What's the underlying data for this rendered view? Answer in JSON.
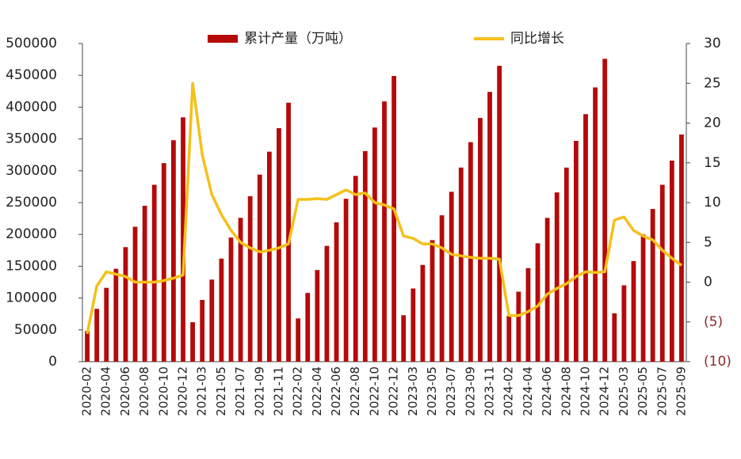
{
  "chart_data": {
    "type": "bar_line",
    "categories": [
      "2020-02",
      null,
      "2020-04",
      null,
      "2020-06",
      null,
      "2020-08",
      null,
      "2020-10",
      null,
      "2020-12",
      null,
      "2021-03",
      null,
      "2021-05",
      null,
      "2021-07",
      null,
      "2021-09",
      null,
      "2021-11",
      null,
      "2022-02",
      null,
      "2022-04",
      null,
      "2022-06",
      null,
      "2022-08",
      null,
      "2022-10",
      null,
      "2022-12",
      null,
      "2023-03",
      null,
      "2023-05",
      null,
      "2023-07",
      null,
      "2023-09",
      null,
      "2023-11",
      null,
      "2024-02",
      null,
      "2024-04",
      null,
      "2024-06",
      null,
      "2024-08",
      null,
      "2024-10",
      null,
      "2024-12",
      null,
      "2025-03",
      null,
      "2025-05",
      null,
      "2025-07",
      null,
      "2025-09"
    ],
    "series": [
      {
        "name": "累计产量（万吨）",
        "type": "bar",
        "color": "#b50a0a",
        "values": [
          48000,
          83000,
          116000,
          146000,
          180000,
          212000,
          245000,
          278000,
          312000,
          348000,
          384000,
          62000,
          97000,
          129000,
          162000,
          195000,
          226000,
          260000,
          294000,
          330000,
          367000,
          407000,
          68000,
          108000,
          144000,
          182000,
          219000,
          256000,
          292000,
          331000,
          368000,
          409000,
          449000,
          73000,
          115000,
          152000,
          191000,
          230000,
          267000,
          305000,
          345000,
          383000,
          424000,
          465000,
          72000,
          110000,
          147000,
          186000,
          226000,
          266000,
          305000,
          347000,
          389000,
          431000,
          476000,
          76000,
          120000,
          158000,
          200000,
          240000,
          278000,
          316000,
          357000
        ]
      },
      {
        "name": "同比增长",
        "type": "line",
        "axis": "y2",
        "color": "#f5c01a",
        "values": [
          -6.5,
          -0.5,
          1.3,
          1.0,
          0.7,
          0,
          0,
          0,
          0.2,
          0.5,
          0.9,
          25,
          16,
          11,
          8.5,
          6.5,
          5,
          4.3,
          3.8,
          4.0,
          4.3,
          4.8,
          10.4,
          10.4,
          10.5,
          10.4,
          11,
          11.6,
          11,
          11.2,
          10,
          9.7,
          9.2,
          5.8,
          5.5,
          4.8,
          4.8,
          4.3,
          3.5,
          3.3,
          3.1,
          3.0,
          3.0,
          2.9,
          -4.2,
          -4.2,
          -3.7,
          -3.0,
          -1.5,
          -0.8,
          -0.2,
          0.7,
          1.3,
          1.2,
          1.3,
          7.8,
          8.2,
          6.5,
          5.8,
          5.3,
          4,
          3,
          2.1
        ]
      }
    ],
    "ylim": [
      0,
      500000
    ],
    "yticks": [
      0,
      50000,
      100000,
      150000,
      200000,
      250000,
      300000,
      350000,
      400000,
      450000,
      500000
    ],
    "y2lim": [
      -10,
      30
    ],
    "y2ticks": [
      {
        "value": -10,
        "label": "(10)"
      },
      {
        "value": -5,
        "label": "(5)"
      },
      0,
      5,
      10,
      15,
      20,
      25,
      30
    ],
    "legend": "top"
  }
}
